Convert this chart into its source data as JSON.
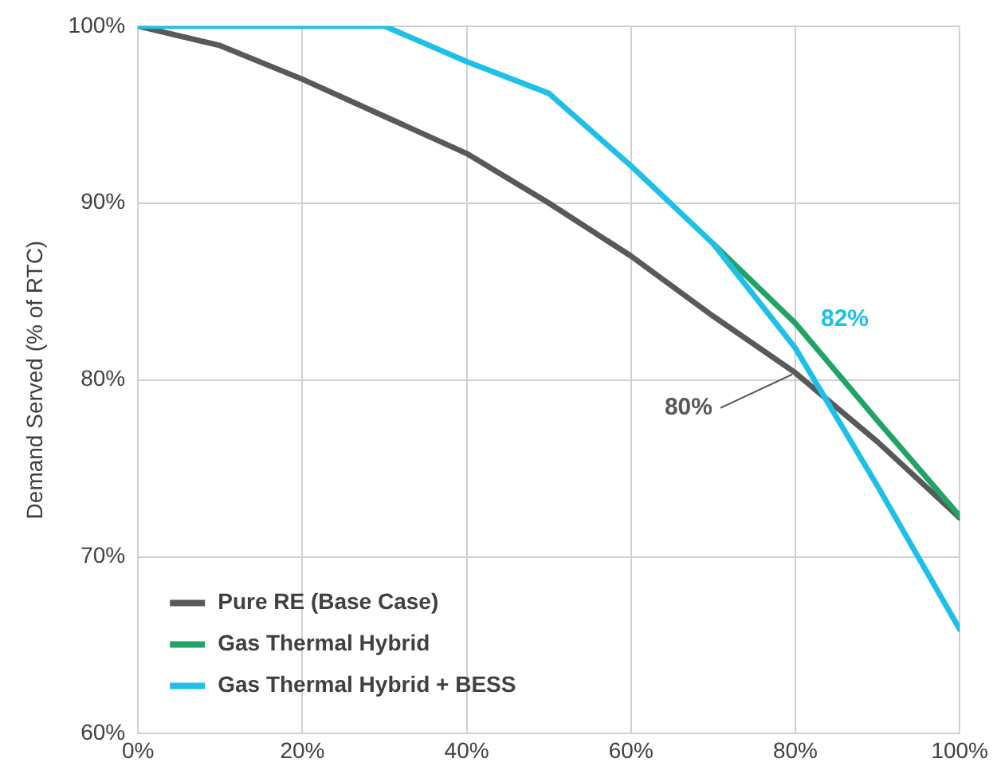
{
  "chart_data": {
    "type": "line",
    "ylabel": "Demand Served (% of RTC)",
    "x": [
      0,
      10,
      20,
      30,
      40,
      50,
      60,
      70,
      80,
      90,
      100
    ],
    "series": [
      {
        "name": "Pure RE (Base Case)",
        "color": "#595959",
        "values": [
          100,
          98.9,
          97,
          94.9,
          92.8,
          90,
          87,
          83.6,
          80.4,
          76.5,
          72.2
        ]
      },
      {
        "name": "Gas Thermal Hybrid",
        "color": "#21a366",
        "values": [
          null,
          null,
          null,
          null,
          null,
          null,
          null,
          87.7,
          83.2,
          77.7,
          72.3
        ]
      },
      {
        "name": "Gas Thermal Hybrid + BESS",
        "color": "#1ec0e8",
        "values": [
          100,
          100,
          100,
          100,
          98,
          96.2,
          92.1,
          87.7,
          81.8,
          74,
          65.9
        ]
      }
    ],
    "xlim": [
      0,
      100
    ],
    "xticks": [
      {
        "value": 0,
        "label": "0%"
      },
      {
        "value": 20,
        "label": "20%"
      },
      {
        "value": 40,
        "label": "40%"
      },
      {
        "value": 60,
        "label": "60%"
      },
      {
        "value": 80,
        "label": "80%"
      },
      {
        "value": 100,
        "label": "100%"
      }
    ],
    "ylim": [
      60,
      100
    ],
    "yticks": [
      {
        "value": 60,
        "label": "60%"
      },
      {
        "value": 70,
        "label": "70%"
      },
      {
        "value": 80,
        "label": "80%"
      },
      {
        "value": 90,
        "label": "90%"
      },
      {
        "value": 100,
        "label": "100%"
      }
    ],
    "annotations": [
      {
        "text": "80%",
        "x": 80,
        "y": 80.4
      },
      {
        "text": "82%",
        "x": 80,
        "y": 81.8
      }
    ],
    "grid": true,
    "legend": "bottom left",
    "marker": "none",
    "line_style": "solid"
  }
}
